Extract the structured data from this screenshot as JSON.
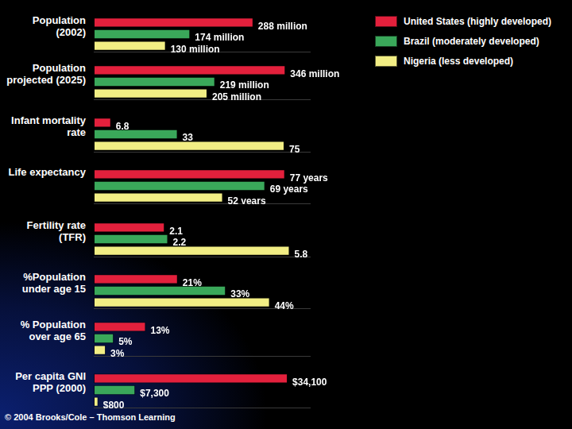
{
  "chart_data": [
    {
      "type": "bar",
      "orientation": "horizontal",
      "title": "Population (2002)",
      "xlim": [
        0,
        390
      ],
      "grid": false,
      "tick_labels": false,
      "data_labels": true,
      "legend": "upper right",
      "series": [
        {
          "name": "United States (highly developed)",
          "color": "#e3203c",
          "values": [
            288
          ],
          "value_labels": [
            "288 million"
          ]
        },
        {
          "name": "Brazil (moderately developed)",
          "color": "#3aa85a",
          "values": [
            174
          ],
          "value_labels": [
            "174 million"
          ]
        },
        {
          "name": "Nigeria (less developed)",
          "color": "#f2ee84",
          "values": [
            130
          ],
          "value_labels": [
            "130 million"
          ]
        }
      ]
    },
    {
      "type": "bar",
      "orientation": "horizontal",
      "title": "Population projected (2025)",
      "xlim": [
        0,
        390
      ],
      "grid": false,
      "tick_labels": false,
      "data_labels": true,
      "series": [
        {
          "color": "#e3203c",
          "values": [
            346
          ],
          "value_labels": [
            "346 million"
          ]
        },
        {
          "color": "#3aa85a",
          "values": [
            219
          ],
          "value_labels": [
            "219 million"
          ]
        },
        {
          "color": "#f2ee84",
          "values": [
            205
          ],
          "value_labels": [
            "205 million"
          ]
        }
      ]
    },
    {
      "type": "bar",
      "orientation": "horizontal",
      "title": "Infant mortality rate",
      "xlim": [
        0,
        85
      ],
      "grid": false,
      "tick_labels": false,
      "data_labels": true,
      "series": [
        {
          "color": "#e3203c",
          "values": [
            6.8
          ]
        },
        {
          "color": "#3aa85a",
          "values": [
            33
          ]
        },
        {
          "color": "#f2ee84",
          "values": [
            75
          ]
        }
      ]
    },
    {
      "type": "bar",
      "orientation": "horizontal",
      "title": "Life expectancy",
      "xlim": [
        0,
        87
      ],
      "grid": false,
      "tick_labels": false,
      "data_labels": true,
      "series": [
        {
          "color": "#e3203c",
          "values": [
            77
          ],
          "value_labels": [
            "77 years"
          ]
        },
        {
          "color": "#3aa85a",
          "values": [
            69
          ],
          "value_labels": [
            "69 years"
          ]
        },
        {
          "color": "#f2ee84",
          "values": [
            52
          ],
          "value_labels": [
            "52 years"
          ]
        }
      ]
    },
    {
      "type": "bar",
      "orientation": "horizontal",
      "title": "Fertility rate (TFR)",
      "xlim": [
        0,
        6.4
      ],
      "grid": false,
      "tick_labels": false,
      "data_labels": true,
      "series": [
        {
          "color": "#e3203c",
          "values": [
            2.1
          ]
        },
        {
          "color": "#3aa85a",
          "values": [
            2.2
          ]
        },
        {
          "color": "#f2ee84",
          "values": [
            5.8
          ]
        }
      ]
    },
    {
      "type": "bar",
      "orientation": "horizontal",
      "title": "%Population under age 15",
      "xlim": [
        0,
        54
      ],
      "grid": false,
      "tick_labels": false,
      "data_labels": true,
      "series": [
        {
          "color": "#e3203c",
          "values": [
            21
          ],
          "value_labels": [
            "21%"
          ]
        },
        {
          "color": "#3aa85a",
          "values": [
            33
          ],
          "value_labels": [
            "33%"
          ]
        },
        {
          "color": "#f2ee84",
          "values": [
            44
          ],
          "value_labels": [
            "44%"
          ]
        }
      ]
    },
    {
      "type": "bar",
      "orientation": "horizontal",
      "title": "% Population over age 65",
      "xlim": [
        0,
        54
      ],
      "grid": false,
      "tick_labels": false,
      "data_labels": true,
      "series": [
        {
          "color": "#e3203c",
          "values": [
            13
          ],
          "value_labels": [
            "13%"
          ]
        },
        {
          "color": "#3aa85a",
          "values": [
            5
          ],
          "value_labels": [
            "5%"
          ]
        },
        {
          "color": "#f2ee84",
          "values": [
            3
          ],
          "value_labels": [
            "3%"
          ]
        }
      ]
    },
    {
      "type": "bar",
      "orientation": "horizontal",
      "title": "Per capita GNI PPP (2000)",
      "xlim": [
        0,
        38000
      ],
      "grid": false,
      "tick_labels": false,
      "data_labels": true,
      "series": [
        {
          "color": "#e3203c",
          "values": [
            34100
          ],
          "value_labels": [
            "$34,100"
          ]
        },
        {
          "color": "#3aa85a",
          "values": [
            7300
          ],
          "value_labels": [
            "$7,300"
          ]
        },
        {
          "color": "#f2ee84",
          "values": [
            800
          ],
          "value_labels": [
            "$800"
          ]
        }
      ]
    }
  ],
  "footer": "© 2004 Brooks/Cole – Thomson Learning"
}
